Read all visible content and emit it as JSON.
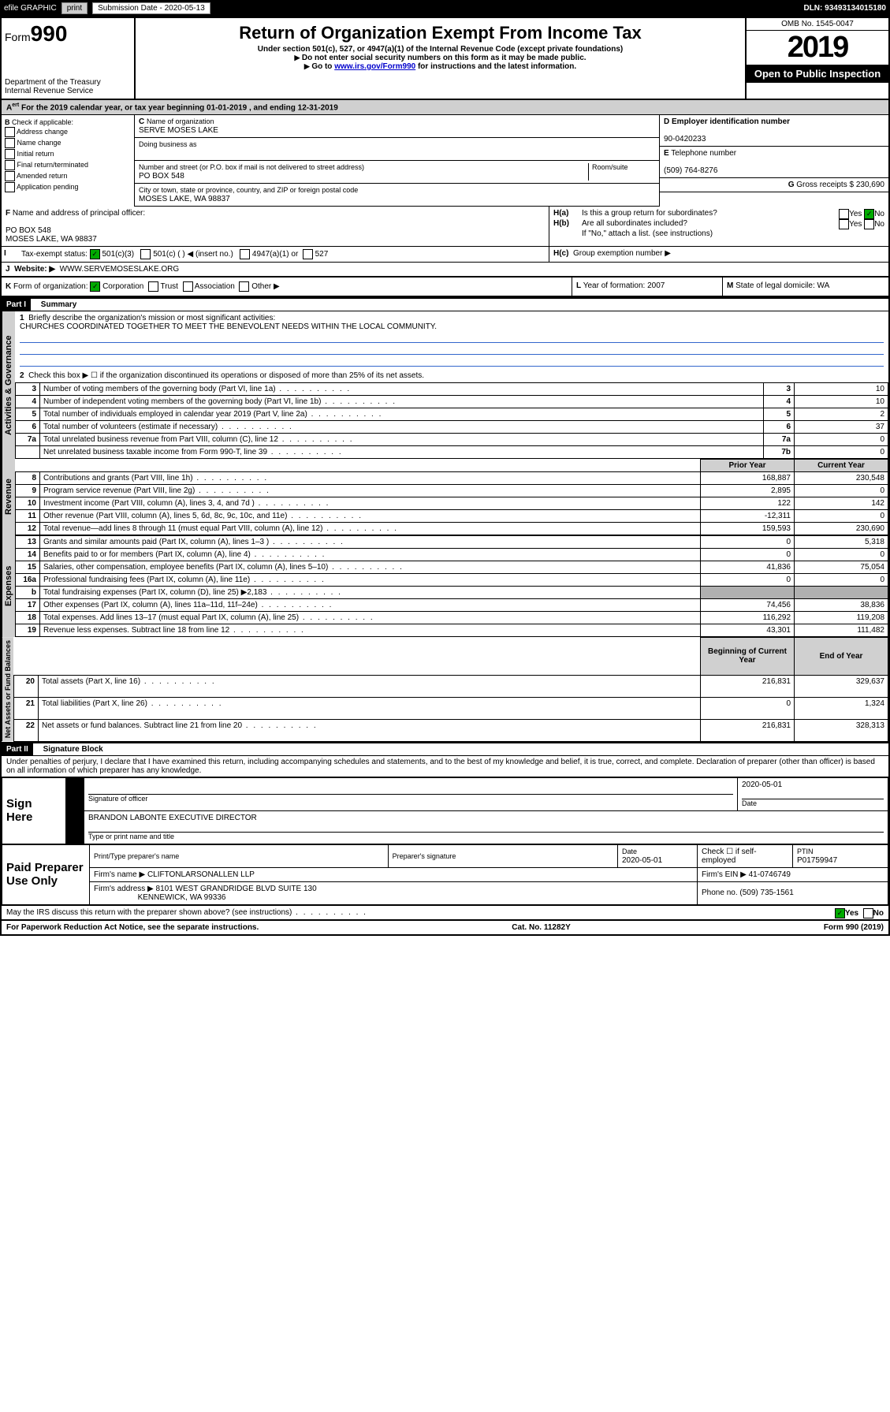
{
  "topbar": {
    "efile": "efile GRAPHIC",
    "print": "print",
    "sublabel": "Submission Date - 2020-05-13",
    "dln": "DLN: 93493134015180"
  },
  "header": {
    "form_prefix": "Form",
    "form_no": "990",
    "title": "Return of Organization Exempt From Income Tax",
    "sub1": "Under section 501(c), 527, or 4947(a)(1) of the Internal Revenue Code (except private foundations)",
    "sub2": "Do not enter social security numbers on this form as it may be made public.",
    "sub3_a": "Go to ",
    "sub3_link": "www.irs.gov/Form990",
    "sub3_b": " for instructions and the latest information.",
    "dept": "Department of the Treasury",
    "irs": "Internal Revenue Service",
    "omb": "OMB No. 1545-0047",
    "year": "2019",
    "opi": "Open to Public Inspection"
  },
  "A": {
    "text": "For the 2019 calendar year, or tax year beginning 01-01-2019   , and ending 12-31-2019"
  },
  "B": {
    "label": "Check if applicable:",
    "opts": [
      "Address change",
      "Name change",
      "Initial return",
      "Final return/terminated",
      "Amended return",
      "Application pending"
    ]
  },
  "C": {
    "name_lbl": "Name of organization",
    "name": "SERVE MOSES LAKE",
    "dba_lbl": "Doing business as",
    "addr_lbl": "Number and street (or P.O. box if mail is not delivered to street address)",
    "room_lbl": "Room/suite",
    "addr": "PO BOX 548",
    "city_lbl": "City or town, state or province, country, and ZIP or foreign postal code",
    "city": "MOSES LAKE, WA  98837"
  },
  "D": {
    "lbl": "Employer identification number",
    "val": "90-0420233"
  },
  "E": {
    "lbl": "Telephone number",
    "val": "(509) 764-8276"
  },
  "G": {
    "lbl": "Gross receipts $",
    "val": "230,690"
  },
  "F": {
    "lbl": "Name and address of principal officer:",
    "l1": "PO BOX 548",
    "l2": "MOSES LAKE, WA  98837"
  },
  "H": {
    "a": "Is this a group return for subordinates?",
    "b": "Are all subordinates included?",
    "b2": "If \"No,\" attach a list. (see instructions)",
    "c": "Group exemption number ▶",
    "yes": "Yes",
    "no": "No"
  },
  "I": {
    "lbl": "Tax-exempt status:",
    "o1": "501(c)(3)",
    "o2": "501(c) (  ) ◀ (insert no.)",
    "o3": "4947(a)(1) or",
    "o4": "527"
  },
  "J": {
    "lbl": "Website: ▶",
    "val": "WWW.SERVEMOSESLAKE.ORG"
  },
  "K": {
    "lbl": "Form of organization:",
    "o1": "Corporation",
    "o2": "Trust",
    "o3": "Association",
    "o4": "Other ▶"
  },
  "L": {
    "lbl": "Year of formation:",
    "val": "2007"
  },
  "M": {
    "lbl": "State of legal domicile:",
    "val": "WA"
  },
  "part1": {
    "bar": "Part I",
    "title": "Summary"
  },
  "p1": {
    "l1": "Briefly describe the organization's mission or most significant activities:",
    "l1v": "CHURCHES COORDINATED TOGETHER TO MEET THE BENEVOLENT NEEDS WITHIN THE LOCAL COMMUNITY.",
    "l2": "Check this box ▶ ☐  if the organization discontinued its operations or disposed of more than 25% of its net assets.",
    "rows_ag": [
      {
        "n": "3",
        "t": "Number of voting members of the governing body (Part VI, line 1a)",
        "b": "3",
        "v": "10"
      },
      {
        "n": "4",
        "t": "Number of independent voting members of the governing body (Part VI, line 1b)",
        "b": "4",
        "v": "10"
      },
      {
        "n": "5",
        "t": "Total number of individuals employed in calendar year 2019 (Part V, line 2a)",
        "b": "5",
        "v": "2"
      },
      {
        "n": "6",
        "t": "Total number of volunteers (estimate if necessary)",
        "b": "6",
        "v": "37"
      },
      {
        "n": "7a",
        "t": "Total unrelated business revenue from Part VIII, column (C), line 12",
        "b": "7a",
        "v": "0"
      },
      {
        "n": "",
        "t": "Net unrelated business taxable income from Form 990-T, line 39",
        "b": "7b",
        "v": "0"
      }
    ],
    "hdr_prior": "Prior Year",
    "hdr_curr": "Current Year",
    "rev": [
      {
        "n": "8",
        "t": "Contributions and grants (Part VIII, line 1h)",
        "p": "168,887",
        "c": "230,548"
      },
      {
        "n": "9",
        "t": "Program service revenue (Part VIII, line 2g)",
        "p": "2,895",
        "c": "0"
      },
      {
        "n": "10",
        "t": "Investment income (Part VIII, column (A), lines 3, 4, and 7d )",
        "p": "122",
        "c": "142"
      },
      {
        "n": "11",
        "t": "Other revenue (Part VIII, column (A), lines 5, 6d, 8c, 9c, 10c, and 11e)",
        "p": "-12,311",
        "c": "0"
      },
      {
        "n": "12",
        "t": "Total revenue—add lines 8 through 11 (must equal Part VIII, column (A), line 12)",
        "p": "159,593",
        "c": "230,690"
      }
    ],
    "exp": [
      {
        "n": "13",
        "t": "Grants and similar amounts paid (Part IX, column (A), lines 1–3 )",
        "p": "0",
        "c": "5,318"
      },
      {
        "n": "14",
        "t": "Benefits paid to or for members (Part IX, column (A), line 4)",
        "p": "0",
        "c": "0"
      },
      {
        "n": "15",
        "t": "Salaries, other compensation, employee benefits (Part IX, column (A), lines 5–10)",
        "p": "41,836",
        "c": "75,054"
      },
      {
        "n": "16a",
        "t": "Professional fundraising fees (Part IX, column (A), line 11e)",
        "p": "0",
        "c": "0"
      },
      {
        "n": "b",
        "t": "Total fundraising expenses (Part IX, column (D), line 25) ▶2,183",
        "p": "grey",
        "c": "grey"
      },
      {
        "n": "17",
        "t": "Other expenses (Part IX, column (A), lines 11a–11d, 11f–24e)",
        "p": "74,456",
        "c": "38,836"
      },
      {
        "n": "18",
        "t": "Total expenses. Add lines 13–17 (must equal Part IX, column (A), line 25)",
        "p": "116,292",
        "c": "119,208"
      },
      {
        "n": "19",
        "t": "Revenue less expenses. Subtract line 18 from line 12",
        "p": "43,301",
        "c": "111,482"
      }
    ],
    "hdr_beg": "Beginning of Current Year",
    "hdr_end": "End of Year",
    "na": [
      {
        "n": "20",
        "t": "Total assets (Part X, line 16)",
        "p": "216,831",
        "c": "329,637"
      },
      {
        "n": "21",
        "t": "Total liabilities (Part X, line 26)",
        "p": "0",
        "c": "1,324"
      },
      {
        "n": "22",
        "t": "Net assets or fund balances. Subtract line 21 from line 20",
        "p": "216,831",
        "c": "328,313"
      }
    ],
    "tabs": {
      "ag": "Activities & Governance",
      "rev": "Revenue",
      "exp": "Expenses",
      "na": "Net Assets or Fund Balances"
    }
  },
  "part2": {
    "bar": "Part II",
    "title": "Signature Block",
    "decl": "Under penalties of perjury, I declare that I have examined this return, including accompanying schedules and statements, and to the best of my knowledge and belief, it is true, correct, and complete. Declaration of preparer (other than officer) is based on all information of which preparer has any knowledge."
  },
  "sign": {
    "here": "Sign Here",
    "sig_lbl": "Signature of officer",
    "date_lbl": "Date",
    "date": "2020-05-01",
    "name": "BRANDON LABONTE  EXECUTIVE DIRECTOR",
    "name_lbl": "Type or print name and title"
  },
  "paid": {
    "title": "Paid Preparer Use Only",
    "h1": "Print/Type preparer's name",
    "h2": "Preparer's signature",
    "h3": "Date",
    "h4": "Check ☐ if self-employed",
    "h5": "PTIN",
    "date": "2020-05-01",
    "ptin": "P01759947",
    "firm_lbl": "Firm's name   ▶",
    "firm": "CLIFTONLARSONALLEN LLP",
    "ein_lbl": "Firm's EIN ▶",
    "ein": "41-0746749",
    "addr_lbl": "Firm's address ▶",
    "addr1": "8101 WEST GRANDRIDGE BLVD SUITE 130",
    "addr2": "KENNEWICK, WA  99336",
    "ph_lbl": "Phone no.",
    "ph": "(509) 735-1561"
  },
  "discuss": {
    "q": "May the IRS discuss this return with the preparer shown above? (see instructions)",
    "yes": "Yes",
    "no": "No"
  },
  "footer": {
    "l": "For Paperwork Reduction Act Notice, see the separate instructions.",
    "m": "Cat. No. 11282Y",
    "r": "Form 990 (2019)"
  }
}
